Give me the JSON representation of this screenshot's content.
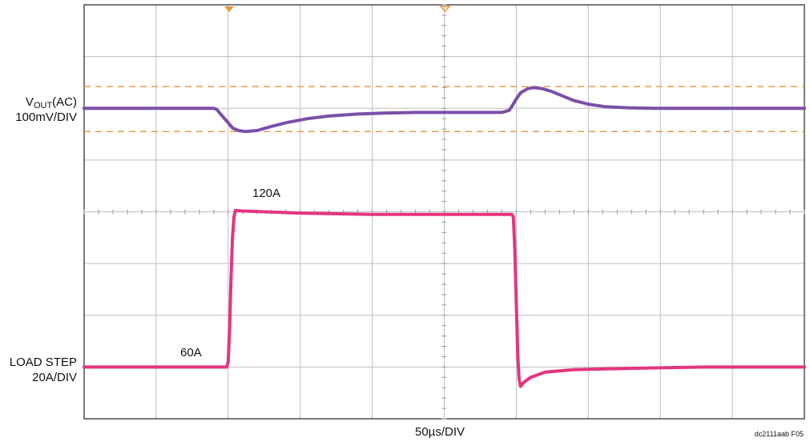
{
  "chart_data": {
    "type": "line",
    "title": "",
    "xlabel": "50µs/DIV",
    "figure_id": "dc2111aab F05",
    "grid": true,
    "x_divisions": 10,
    "y_divisions": 8,
    "x_unit": "µs",
    "channels": {
      "vout": {
        "label_main": "V",
        "label_sub": "OUT",
        "label_suffix": "(AC)",
        "scale": "100mV/DIV",
        "color": "#7b4fa8",
        "cursor_color": "#e8943a",
        "cursor_levels_mV": [
          42,
          -45
        ],
        "x": [
          0,
          90,
          92,
          95,
          100,
          103,
          107,
          112,
          120,
          130,
          140,
          155,
          170,
          190,
          210,
          230,
          250,
          270,
          290,
          295,
          297,
          300,
          303,
          308,
          312,
          318,
          324,
          332,
          340,
          350,
          362,
          378,
          395,
          420,
          450,
          500
        ],
        "values_mV": [
          0,
          0,
          -2,
          -12,
          -28,
          -38,
          -43,
          -45,
          -43,
          -35,
          -28,
          -20,
          -15,
          -11,
          -9,
          -8,
          -8,
          -8,
          -8,
          -4,
          4,
          18,
          30,
          38,
          40,
          38,
          33,
          24,
          15,
          8,
          3,
          1,
          0,
          0,
          0,
          0
        ]
      },
      "load": {
        "label": "LOAD STEP",
        "scale": "20A/DIV",
        "color": "#e3357f",
        "annotations": [
          {
            "text": "60A"
          },
          {
            "text": "120A"
          }
        ],
        "x": [
          0,
          99,
          100,
          101,
          102,
          103,
          104,
          105,
          110,
          150,
          200,
          250,
          297,
          298,
          299,
          300,
          301,
          302,
          303,
          305,
          310,
          320,
          340,
          380,
          430,
          500
        ],
        "values_A": [
          60,
          60,
          62,
          75,
          95,
          110,
          118,
          120.5,
          120.3,
          119.5,
          119,
          119,
          119,
          118,
          105,
          85,
          65,
          55,
          52.5,
          54,
          56,
          58,
          59,
          59.5,
          60,
          60
        ]
      }
    }
  }
}
